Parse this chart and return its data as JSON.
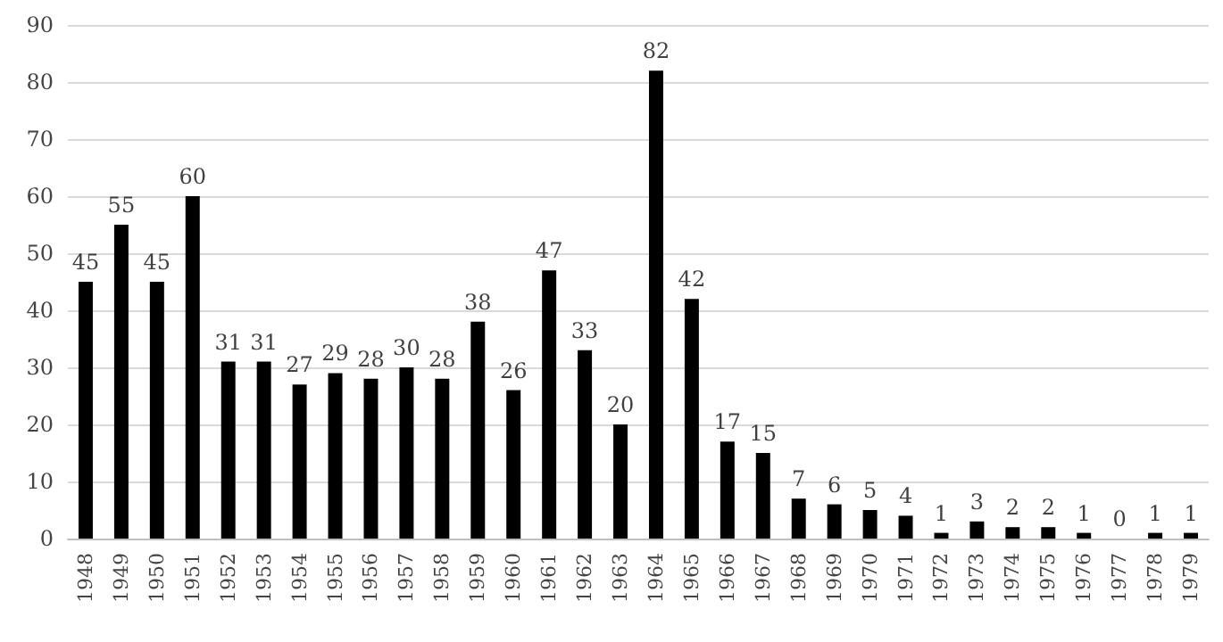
{
  "chart_data": {
    "type": "bar",
    "categories": [
      "1948",
      "1949",
      "1950",
      "1951",
      "1952",
      "1953",
      "1954",
      "1955",
      "1956",
      "1957",
      "1958",
      "1959",
      "1960",
      "1961",
      "1962",
      "1963",
      "1964",
      "1965",
      "1966",
      "1967",
      "1968",
      "1969",
      "1970",
      "1971",
      "1972",
      "1973",
      "1974",
      "1975",
      "1976",
      "1977",
      "1978",
      "1979"
    ],
    "values": [
      45,
      55,
      45,
      60,
      31,
      31,
      27,
      29,
      28,
      30,
      28,
      38,
      26,
      47,
      33,
      20,
      82,
      42,
      17,
      15,
      7,
      6,
      5,
      4,
      1,
      3,
      2,
      2,
      1,
      0,
      1,
      1
    ],
    "color": "#000000",
    "ylim": [
      0,
      90
    ],
    "yticks": [
      0,
      10,
      20,
      30,
      40,
      50,
      60,
      70,
      80,
      90
    ],
    "grid": "y",
    "data_labels": true
  }
}
